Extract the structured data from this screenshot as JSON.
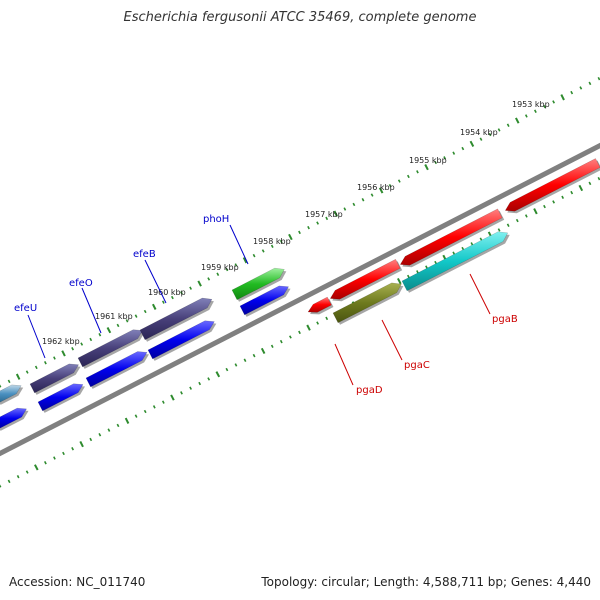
{
  "title": "Escherichia fergusonii ATCC 35469, complete genome",
  "footer": {
    "accession": "Accession: NC_011740",
    "topology": "Topology: circular; Length: 4,588,711 bp; Genes: 4,440"
  },
  "colors": {
    "backbone": "#808080",
    "tick": "#2e8b2e",
    "forward_label": "#0000cc",
    "reverse_label": "#cc0000"
  },
  "ticks": [
    "1953 kbp",
    "1954 kbp",
    "1955 kbp",
    "1956 kbp",
    "1957 kbp",
    "1958 kbp",
    "1959 kbp",
    "1960 kbp",
    "1961 kbp",
    "1962 kbp"
  ],
  "gene_labels": {
    "efeU": "efeU",
    "efeO": "efeO",
    "efeB": "efeB",
    "phoH": "phoH",
    "pgaD": "pgaD",
    "pgaC": "pgaC",
    "pgaB": "pgaB"
  }
}
